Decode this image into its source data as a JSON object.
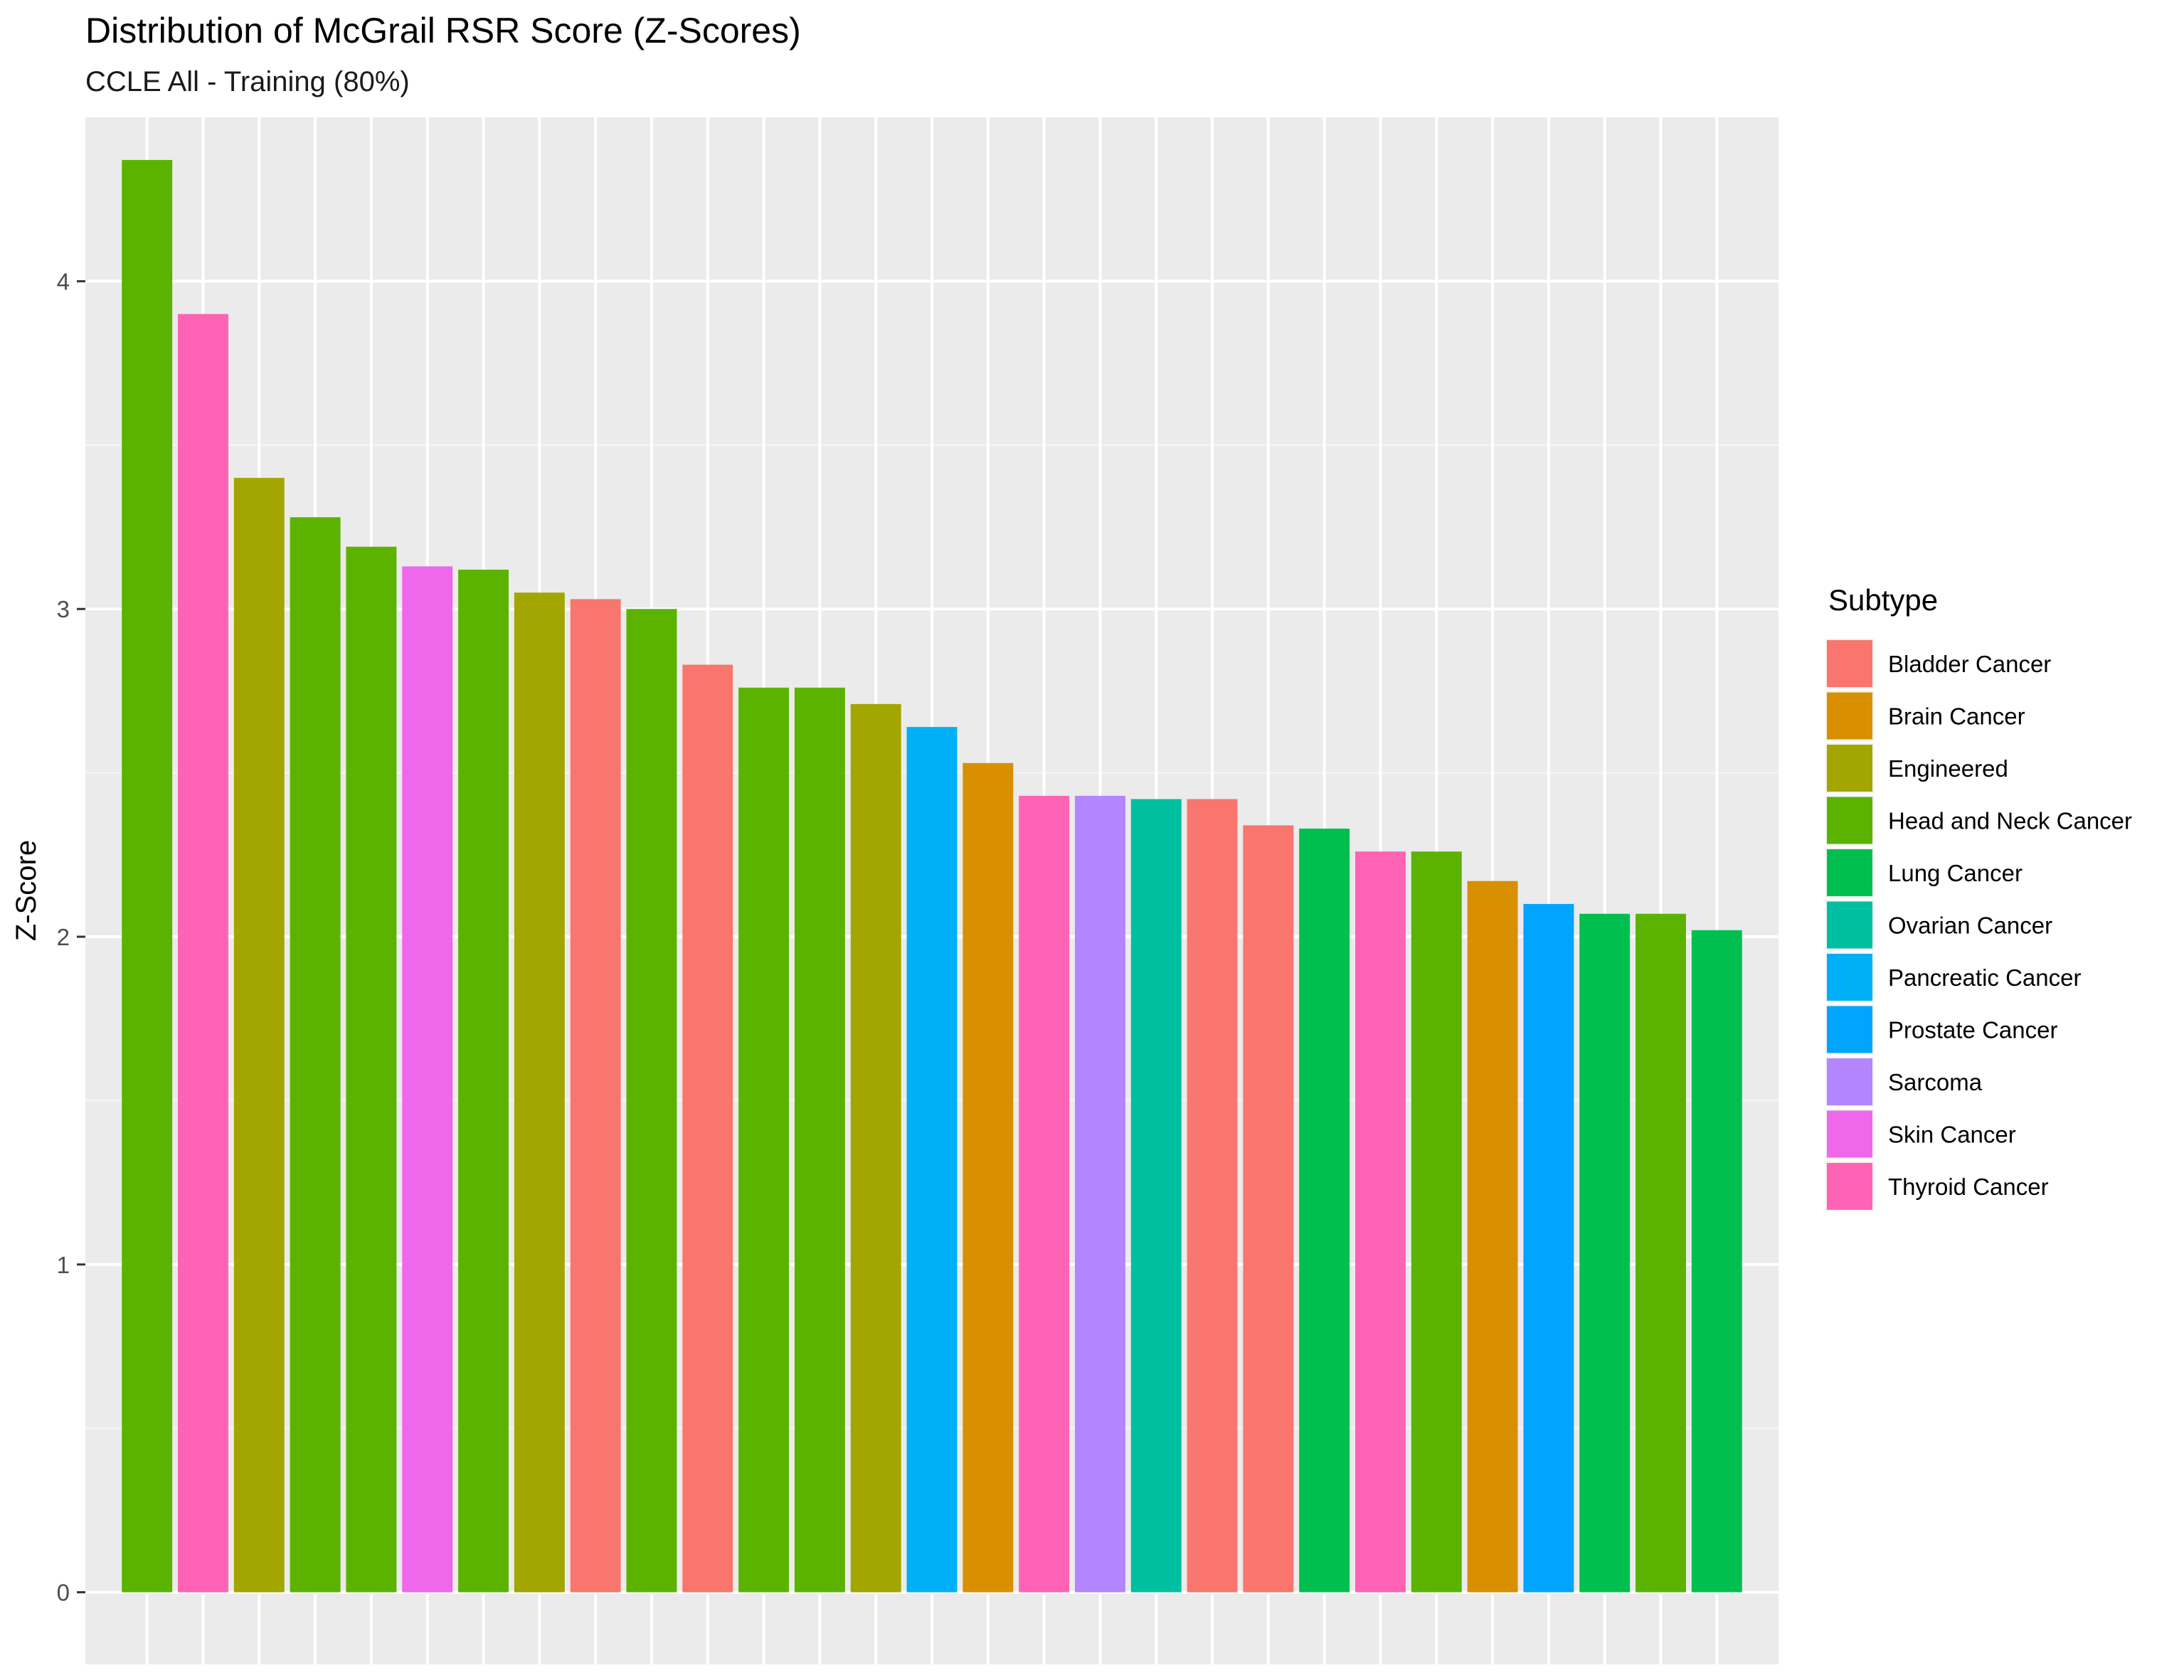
{
  "chart_data": {
    "type": "bar",
    "title": "Distribution of McGrail RSR Score (Z-Scores)",
    "subtitle": "CCLE All - Training (80%)",
    "xlabel": "",
    "ylabel": "Z-Score",
    "ylim": [
      -0.22,
      4.5
    ],
    "yticks": [
      0,
      1,
      2,
      3,
      4
    ],
    "grid": true,
    "legend": {
      "title": "Subtype",
      "placement": "right",
      "entries": [
        {
          "name": "Bladder Cancer",
          "color": "#F8766D"
        },
        {
          "name": "Brain Cancer",
          "color": "#D89000"
        },
        {
          "name": "Engineered",
          "color": "#A3A500"
        },
        {
          "name": "Head and Neck Cancer",
          "color": "#5BB300"
        },
        {
          "name": "Lung Cancer",
          "color": "#00BF4F"
        },
        {
          "name": "Ovarian Cancer",
          "color": "#00BFA0"
        },
        {
          "name": "Pancreatic Cancer",
          "color": "#00B0F6"
        },
        {
          "name": "Prostate Cancer",
          "color": "#00A5FF"
        },
        {
          "name": "Sarcoma",
          "color": "#B385FF"
        },
        {
          "name": "Skin Cancer",
          "color": "#EF67EB"
        },
        {
          "name": "Thyroid Cancer",
          "color": "#FF63B6"
        }
      ]
    },
    "bars": [
      {
        "subtype": "Head and Neck Cancer",
        "value": 4.37
      },
      {
        "subtype": "Thyroid Cancer",
        "value": 3.9
      },
      {
        "subtype": "Engineered",
        "value": 3.4
      },
      {
        "subtype": "Head and Neck Cancer",
        "value": 3.28
      },
      {
        "subtype": "Head and Neck Cancer",
        "value": 3.19
      },
      {
        "subtype": "Skin Cancer",
        "value": 3.13
      },
      {
        "subtype": "Head and Neck Cancer",
        "value": 3.12
      },
      {
        "subtype": "Engineered",
        "value": 3.05
      },
      {
        "subtype": "Bladder Cancer",
        "value": 3.03
      },
      {
        "subtype": "Head and Neck Cancer",
        "value": 3.0
      },
      {
        "subtype": "Bladder Cancer",
        "value": 2.83
      },
      {
        "subtype": "Head and Neck Cancer",
        "value": 2.76
      },
      {
        "subtype": "Head and Neck Cancer",
        "value": 2.76
      },
      {
        "subtype": "Engineered",
        "value": 2.71
      },
      {
        "subtype": "Pancreatic Cancer",
        "value": 2.64
      },
      {
        "subtype": "Brain Cancer",
        "value": 2.53
      },
      {
        "subtype": "Thyroid Cancer",
        "value": 2.43
      },
      {
        "subtype": "Sarcoma",
        "value": 2.43
      },
      {
        "subtype": "Ovarian Cancer",
        "value": 2.42
      },
      {
        "subtype": "Bladder Cancer",
        "value": 2.42
      },
      {
        "subtype": "Bladder Cancer",
        "value": 2.34
      },
      {
        "subtype": "Lung Cancer",
        "value": 2.33
      },
      {
        "subtype": "Thyroid Cancer",
        "value": 2.26
      },
      {
        "subtype": "Head and Neck Cancer",
        "value": 2.26
      },
      {
        "subtype": "Brain Cancer",
        "value": 2.17
      },
      {
        "subtype": "Prostate Cancer",
        "value": 2.1
      },
      {
        "subtype": "Lung Cancer",
        "value": 2.07
      },
      {
        "subtype": "Head and Neck Cancer",
        "value": 2.07
      },
      {
        "subtype": "Lung Cancer",
        "value": 2.02
      }
    ]
  }
}
